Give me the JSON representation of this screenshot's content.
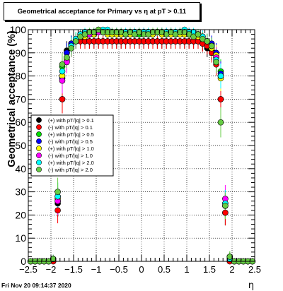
{
  "title_text": "Geometrical acceptance for Primary vs    η at pT  > 0.11",
  "timestamp": "Fri Nov 20 09:14:37 2020",
  "chart_data": {
    "type": "scatter",
    "xlabel": "η",
    "ylabel": "Geometrical acceptance (%)",
    "xlim": [
      -2.5,
      2.5
    ],
    "ylim": [
      0,
      100
    ],
    "xticks": [
      -2.5,
      -2,
      -1.5,
      -1,
      -0.5,
      0,
      0.5,
      1,
      1.5,
      2,
      2.5
    ],
    "xtick_labels": [
      "−2.5",
      "−2",
      "−1.5",
      "−1",
      "−0.5",
      "0",
      "0.5",
      "1",
      "1.5",
      "2",
      "2.5"
    ],
    "yticks": [
      0,
      10,
      20,
      30,
      40,
      50,
      60,
      70,
      80,
      90,
      100
    ],
    "grid": true,
    "legend_position": "left-middle",
    "series": [
      {
        "name": "(+) with pT/|q| > 0.1",
        "color": "#000000",
        "marker": "circle"
      },
      {
        "name": "(-) with pT/|q| > 0.1",
        "color": "#ff0000",
        "marker": "circle"
      },
      {
        "name": "(+) with pT/|q| > 0.5",
        "color": "#00dd00",
        "marker": "circle"
      },
      {
        "name": "(-) with pT/|q| > 0.5",
        "color": "#0000ff",
        "marker": "circle"
      },
      {
        "name": "(+) with pT/|q| > 1.0",
        "color": "#ffff00",
        "marker": "circle"
      },
      {
        "name": "(-) with pT/|q| > 1.0",
        "color": "#ff00ff",
        "marker": "circle"
      },
      {
        "name": "(+) with pT/|q| > 2.0",
        "color": "#00ffff",
        "marker": "circle"
      },
      {
        "name": "(-) with pT/|q| > 2.0",
        "color": "#66cc44",
        "marker": "circle"
      }
    ],
    "x": [
      -2.45,
      -2.35,
      -2.25,
      -2.15,
      -2.05,
      -1.95,
      -1.85,
      -1.75,
      -1.65,
      -1.55,
      -1.45,
      -1.35,
      -1.25,
      -1.15,
      -1.05,
      -0.95,
      -0.85,
      -0.75,
      -0.65,
      -0.55,
      -0.45,
      -0.35,
      -0.25,
      -0.15,
      -0.05,
      0.05,
      0.15,
      0.25,
      0.35,
      0.45,
      0.55,
      0.65,
      0.75,
      0.85,
      0.95,
      1.05,
      1.15,
      1.25,
      1.35,
      1.45,
      1.55,
      1.65,
      1.75,
      1.85,
      1.95,
      2.05,
      2.15,
      2.25,
      2.35,
      2.45
    ],
    "values": [
      [
        0,
        0,
        0,
        0,
        0,
        0,
        25,
        70,
        91,
        93,
        95,
        96,
        95,
        95,
        95,
        95,
        95,
        95,
        95,
        95,
        95,
        95,
        95,
        95,
        95,
        95,
        95,
        95,
        95,
        95,
        95,
        95,
        95,
        95,
        95,
        95,
        95,
        95,
        94,
        92,
        91,
        86,
        70,
        21,
        0,
        0,
        0,
        0,
        0,
        0
      ],
      [
        0,
        0,
        0,
        0,
        0,
        0,
        22,
        70,
        90,
        93,
        95,
        95,
        95,
        95,
        95,
        95,
        95,
        95,
        95,
        95,
        95,
        95,
        95,
        95,
        95,
        95,
        95,
        95,
        95,
        95,
        95,
        95,
        95,
        95,
        95,
        95,
        95,
        95,
        94,
        93,
        90,
        85,
        70,
        21,
        0,
        0,
        0,
        0,
        0,
        0
      ],
      [
        0,
        0,
        0,
        0,
        0,
        1,
        28,
        84,
        90,
        94,
        96,
        97,
        97,
        98,
        99,
        99,
        99,
        99,
        98,
        99,
        98,
        98,
        99,
        98,
        98,
        99,
        99,
        99,
        99,
        99,
        99,
        99,
        98,
        99,
        99,
        99,
        98,
        97,
        96,
        95,
        93,
        88,
        82,
        24,
        2,
        0,
        0,
        0,
        0,
        0
      ],
      [
        0,
        0,
        0,
        0,
        0,
        1,
        26,
        79,
        90,
        94,
        95,
        97,
        97,
        98,
        98,
        99,
        99,
        99,
        99,
        99,
        98,
        98,
        98,
        98,
        99,
        99,
        98,
        98,
        99,
        99,
        99,
        99,
        99,
        99,
        98,
        99,
        98,
        98,
        96,
        95,
        94,
        90,
        81,
        25,
        1,
        0,
        0,
        0,
        0,
        0
      ],
      [
        0,
        0,
        0,
        0,
        0,
        1,
        27,
        80,
        87,
        93,
        96,
        97,
        97,
        98,
        98,
        99,
        99,
        98,
        98,
        98,
        98,
        98,
        98,
        99,
        99,
        99,
        99,
        98,
        99,
        98,
        99,
        98,
        98,
        98,
        98,
        98,
        98,
        97,
        96,
        95,
        92,
        89,
        79,
        24,
        1,
        0,
        0,
        0,
        0,
        0
      ],
      [
        0,
        0,
        0,
        0,
        0,
        1,
        26,
        78,
        86,
        92,
        95,
        97,
        98,
        98,
        99,
        99,
        99,
        99,
        99,
        99,
        99,
        99,
        99,
        99,
        99,
        99,
        99,
        99,
        99,
        99,
        99,
        99,
        99,
        99,
        99,
        99,
        98,
        98,
        97,
        95,
        93,
        88,
        80,
        27,
        1,
        0,
        0,
        0,
        0,
        0
      ],
      [
        0,
        0,
        0,
        0,
        0,
        1,
        28,
        82,
        88,
        93,
        96,
        98,
        99,
        99,
        99,
        100,
        100,
        100,
        99,
        99,
        99,
        99,
        99,
        99,
        99,
        99,
        99,
        99,
        99,
        99,
        99,
        99,
        99,
        99,
        100,
        99,
        99,
        98,
        97,
        95,
        93,
        87,
        80,
        25,
        1,
        0,
        0,
        0,
        0,
        0
      ],
      [
        0,
        0,
        0,
        0,
        0,
        1,
        30,
        85,
        88,
        92,
        95,
        97,
        98,
        99,
        99,
        100,
        99,
        99,
        99,
        99,
        99,
        98,
        99,
        98,
        99,
        98,
        98,
        99,
        99,
        99,
        98,
        99,
        98,
        99,
        99,
        98,
        97,
        98,
        96,
        95,
        93,
        86,
        60,
        24,
        2,
        0,
        0,
        0,
        0,
        0
      ]
    ]
  }
}
